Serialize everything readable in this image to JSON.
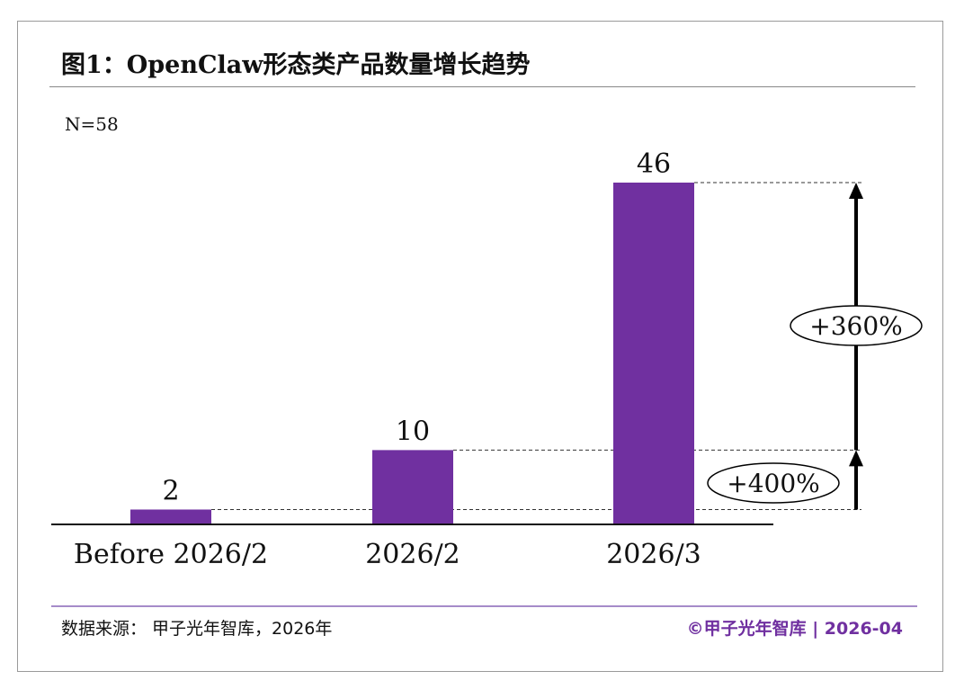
{
  "title": "图1：OpenClaw形态类产品数量增长趋势",
  "sample_note": "N=58",
  "footer": {
    "source": "数据来源： 甲子光年智库，2026年",
    "copyright": "©甲子光年智库 | 2026-04"
  },
  "chart_data": {
    "type": "bar",
    "title": "图1：OpenClaw形态类产品数量增长趋势",
    "categories": [
      "Before 2026/2",
      "2026/2",
      "2026/3"
    ],
    "values": [
      2,
      10,
      46
    ],
    "data_labels": [
      "2",
      "10",
      "46"
    ],
    "bar_color": "#7030a0",
    "ylim": [
      0,
      46
    ],
    "grid": false,
    "annotations": [
      {
        "label": "+400%",
        "from": 2,
        "to": 10
      },
      {
        "label": "+360%",
        "from": 10,
        "to": 46
      }
    ]
  }
}
